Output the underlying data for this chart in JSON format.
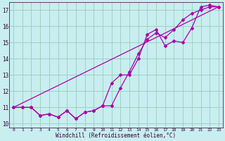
{
  "xlabel": "Windchill (Refroidissement éolien,°C)",
  "background_color": "#c8eef0",
  "grid_color": "#99ccbb",
  "line_color": "#aa00aa",
  "xlim": [
    -0.5,
    23.5
  ],
  "ylim": [
    9.75,
    17.5
  ],
  "xticks": [
    0,
    1,
    2,
    3,
    4,
    5,
    6,
    7,
    8,
    9,
    10,
    11,
    12,
    13,
    14,
    15,
    16,
    17,
    18,
    19,
    20,
    21,
    22,
    23
  ],
  "yticks": [
    10,
    11,
    12,
    13,
    14,
    15,
    16,
    17
  ],
  "series1_x": [
    0,
    1,
    2,
    3,
    4,
    5,
    6,
    7,
    8,
    9,
    10,
    11,
    12,
    13,
    14,
    15,
    16,
    17,
    18,
    19,
    20,
    21,
    22,
    23
  ],
  "series1_y": [
    11.0,
    11.0,
    11.0,
    10.5,
    10.6,
    10.4,
    10.8,
    10.3,
    10.7,
    10.8,
    11.1,
    12.5,
    13.0,
    13.0,
    14.0,
    15.5,
    15.8,
    14.8,
    15.1,
    15.0,
    15.9,
    17.2,
    17.3,
    17.2
  ],
  "series2_x": [
    0,
    1,
    2,
    3,
    4,
    5,
    6,
    7,
    8,
    9,
    10,
    11,
    12,
    13,
    14,
    15,
    16,
    17,
    18,
    19,
    20,
    21,
    22,
    23
  ],
  "series2_y": [
    11.0,
    11.0,
    11.0,
    10.5,
    10.6,
    10.4,
    10.8,
    10.3,
    10.7,
    10.8,
    11.1,
    11.1,
    12.2,
    13.2,
    14.3,
    15.2,
    15.6,
    15.3,
    15.8,
    16.4,
    16.8,
    17.0,
    17.2,
    17.2
  ],
  "series3_x": [
    0,
    23
  ],
  "series3_y": [
    11.0,
    17.2
  ]
}
